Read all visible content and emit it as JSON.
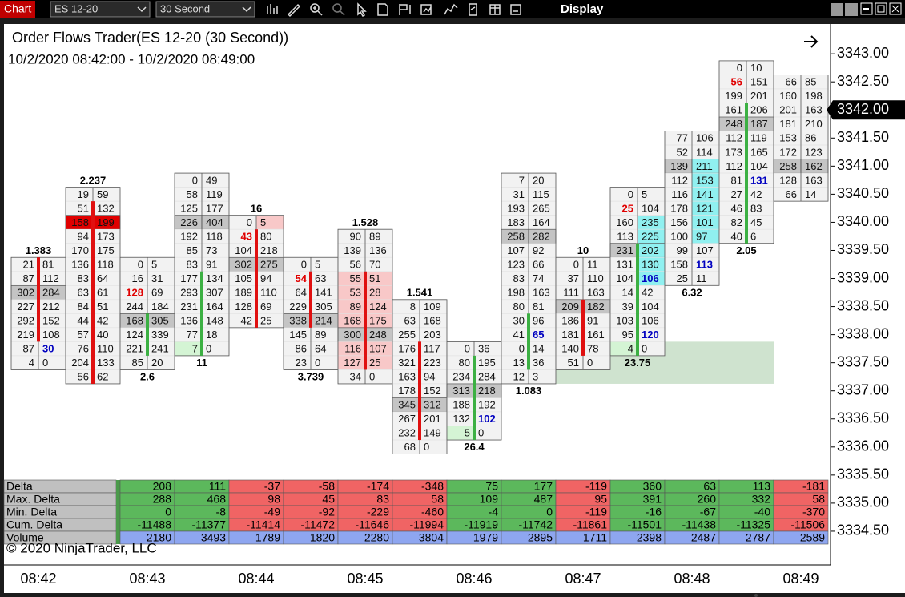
{
  "toolbar": {
    "tab": "Chart",
    "instrument": "ES 12-20",
    "interval": "30 Second",
    "menu": "Display"
  },
  "chart_data": {
    "type": "footprint",
    "title": "Order Flows Trader(ES 12-20 (30 Second))",
    "subtitle": "10/2/2020 08:42:00 - 10/2/2020 08:49:00",
    "copyright": "© 2020 NinjaTrader, LLC",
    "tick_size": 0.25,
    "ylim": [
      3333.9,
      3343.53
    ],
    "yticks": [
      {
        "value": 3343,
        "label": "3343.00"
      },
      {
        "value": 3342.5,
        "label": "3342.50"
      },
      {
        "value": 3341.5,
        "label": "3341.50"
      },
      {
        "value": 3341,
        "label": "3341.00"
      },
      {
        "value": 3340.5,
        "label": "3340.50"
      },
      {
        "value": 3340,
        "label": "3340.00"
      },
      {
        "value": 3339.5,
        "label": "3339.50"
      },
      {
        "value": 3339,
        "label": "3339.00"
      },
      {
        "value": 3338.5,
        "label": "3338.50"
      },
      {
        "value": 3338,
        "label": "3338.00"
      },
      {
        "value": 3337.5,
        "label": "3337.50"
      },
      {
        "value": 3337,
        "label": "3337.00"
      },
      {
        "value": 3336.5,
        "label": "3336.50"
      },
      {
        "value": 3336,
        "label": "3336.00"
      },
      {
        "value": 3335.5,
        "label": "3335.50"
      },
      {
        "value": 3335,
        "label": "3335.00"
      },
      {
        "value": 3334.5,
        "label": "3334.50"
      }
    ],
    "current_price": {
      "value": 3342,
      "label": "3342.00"
    },
    "time_labels": [
      "08:42",
      "08:43",
      "08:44",
      "08:45",
      "08:46",
      "08:47",
      "08:48",
      "08:49"
    ],
    "up_color": "#3cb043",
    "down_color": "#e01010",
    "cell_color": "#f2f2f2",
    "poc_color": "#c4c4c4",
    "zone": {
      "low": 3337.25,
      "high": 3337.75,
      "color": "#cfe3cf"
    },
    "bars": [
      {
        "top": 3339.25,
        "bid": [
          21,
          87,
          302,
          227,
          292,
          219,
          87,
          4
        ],
        "ask": [
          81,
          112,
          284,
          212,
          152,
          108,
          30,
          0
        ],
        "label": 1.383,
        "label_at": "top",
        "open": 3339.25,
        "close": 3338.0,
        "ask_text_colors": [
          null,
          null,
          null,
          null,
          null,
          null,
          "#0000c0",
          null
        ]
      },
      {
        "top": 3340.5,
        "bid": [
          19,
          51,
          158,
          94,
          170,
          136,
          83,
          63,
          84,
          44,
          57,
          76,
          204,
          56
        ],
        "ask": [
          59,
          132,
          199,
          173,
          175,
          118,
          64,
          61,
          51,
          42,
          40,
          110,
          133,
          62
        ],
        "label": 2.237,
        "label_at": "top",
        "open": 3340.25,
        "close": 3337.25,
        "poc_color": "#e00000"
      },
      {
        "top": 3339.25,
        "bid": [
          0,
          16,
          128,
          244,
          168,
          124,
          221,
          85
        ],
        "ask": [
          5,
          31,
          69,
          184,
          305,
          339,
          241,
          20
        ],
        "label": 2.6,
        "label_at": "bottom",
        "open": 3337.75,
        "close": 3338.25,
        "bid_text_colors": [
          null,
          null,
          "#e00000",
          null,
          null,
          null,
          null,
          null
        ]
      },
      {
        "top": 3340.75,
        "bid": [
          0,
          58,
          125,
          226,
          192,
          85,
          83,
          177,
          293,
          231,
          136,
          77,
          7
        ],
        "ask": [
          49,
          119,
          177,
          404,
          118,
          73,
          91,
          134,
          307,
          164,
          148,
          18,
          0
        ],
        "label": 11,
        "label_at": "bottom",
        "open": 3337.75,
        "close": 3339.0,
        "bid_fills": [
          null,
          null,
          null,
          null,
          null,
          null,
          null,
          null,
          null,
          null,
          null,
          null,
          "#d4f4d4"
        ]
      },
      {
        "top": 3340.0,
        "bid": [
          0,
          43,
          104,
          302,
          105,
          189,
          128,
          42
        ],
        "ask": [
          5,
          80,
          218,
          275,
          94,
          110,
          69,
          25
        ],
        "label": 16,
        "label_at": "top",
        "open": 3339.75,
        "close": 3338.25,
        "bid_text_colors": [
          null,
          "#e00000",
          null,
          null,
          null,
          null,
          null,
          null
        ],
        "ask_fills": [
          "#f8c8c8",
          null,
          null,
          null,
          null,
          null,
          null,
          null
        ]
      },
      {
        "top": 3339.25,
        "bid": [
          0,
          54,
          64,
          229,
          338,
          145,
          86,
          23
        ],
        "ask": [
          5,
          63,
          141,
          305,
          214,
          89,
          64,
          0
        ],
        "label": 3.739,
        "label_at": "bottom",
        "open": 3339.0,
        "close": 3338.25,
        "bid_text_colors": [
          null,
          "#e00000",
          null,
          null,
          null,
          null,
          null,
          null
        ]
      },
      {
        "top": 3339.75,
        "bid": [
          90,
          139,
          56,
          55,
          53,
          89,
          168,
          300,
          116,
          127,
          34
        ],
        "ask": [
          89,
          136,
          70,
          51,
          28,
          124,
          175,
          248,
          107,
          25,
          0
        ],
        "label": 1.528,
        "label_at": "top",
        "open": 3339.0,
        "close": 3337.5,
        "bid_fills": [
          null,
          null,
          null,
          "#f8c8c8",
          "#f8c8c8",
          "#f8c8c8",
          "#f8c8c8",
          null,
          "#f8c8c8",
          "#f8c8c8",
          null
        ],
        "ask_fills": [
          null,
          null,
          null,
          "#f8c8c8",
          "#f8c8c8",
          "#f8c8c8",
          "#f8c8c8",
          null,
          "#f8c8c8",
          "#f8c8c8",
          null
        ]
      },
      {
        "top": 3338.5,
        "bid": [
          8,
          63,
          255,
          176,
          321,
          163,
          178,
          345,
          267,
          232,
          68
        ],
        "ask": [
          109,
          168,
          203,
          117,
          223,
          94,
          152,
          312,
          201,
          149,
          0
        ],
        "label": 1.541,
        "label_at": "top",
        "open": 3337.75,
        "close": 3336.25
      },
      {
        "top": 3337.75,
        "bid": [
          0,
          80,
          234,
          313,
          188,
          132,
          5
        ],
        "ask": [
          36,
          195,
          284,
          218,
          192,
          102,
          0
        ],
        "label": 26.4,
        "label_at": "bottom",
        "open": 3336.25,
        "close": 3337.5,
        "ask_text_colors": [
          null,
          null,
          null,
          null,
          null,
          "#0000c0",
          null
        ],
        "bid_fills": [
          null,
          null,
          null,
          null,
          null,
          null,
          "#d4f4d4"
        ]
      },
      {
        "top": 3340.75,
        "bid": [
          7,
          31,
          193,
          183,
          258,
          107,
          123,
          83,
          198,
          80,
          30,
          41,
          0,
          13,
          12
        ],
        "ask": [
          20,
          115,
          265,
          164,
          282,
          92,
          66,
          74,
          163,
          81,
          96,
          65,
          14,
          36,
          3
        ],
        "label": 1.083,
        "label_at": "bottom",
        "open": 3337.5,
        "close": 3338.25,
        "ask_text_colors": [
          null,
          null,
          null,
          null,
          null,
          null,
          null,
          null,
          null,
          null,
          null,
          "#0000c0",
          null,
          null,
          null
        ]
      },
      {
        "top": 3339.25,
        "bid": [
          0,
          37,
          111,
          209,
          186,
          181,
          140,
          51
        ],
        "ask": [
          11,
          110,
          163,
          182,
          91,
          161,
          78,
          0
        ],
        "label": 10,
        "label_at": "top",
        "open": 3338.5,
        "close": 3337.75
      },
      {
        "top": 3340.5,
        "bid": [
          0,
          25,
          160,
          113,
          231,
          131,
          104,
          14,
          39,
          103,
          95,
          4
        ],
        "ask": [
          5,
          104,
          235,
          225,
          202,
          130,
          106,
          42,
          104,
          106,
          120,
          0
        ],
        "label": 23.75,
        "label_at": "bottom",
        "open": 3337.75,
        "close": 3339.5,
        "bid_text_colors": [
          null,
          "#e00000",
          null,
          null,
          null,
          null,
          null,
          null,
          null,
          null,
          null,
          null
        ],
        "ask_text_colors": [
          null,
          null,
          null,
          null,
          null,
          null,
          "#0000c0",
          null,
          null,
          null,
          "#0000c0",
          null
        ],
        "ask_fills": [
          null,
          null,
          "#90f0f0",
          "#90f0f0",
          "#90f0f0",
          "#90f0f0",
          "#90f0f0",
          null,
          null,
          null,
          null,
          null
        ],
        "bid_fills": [
          null,
          null,
          null,
          null,
          null,
          null,
          null,
          null,
          null,
          null,
          null,
          "#d4f4d4"
        ]
      },
      {
        "top": 3341.5,
        "bid": [
          77,
          52,
          139,
          112,
          116,
          178,
          156,
          100,
          99,
          158,
          25
        ],
        "ask": [
          106,
          114,
          211,
          153,
          141,
          121,
          101,
          97,
          107,
          113,
          11
        ],
        "label": 6.32,
        "label_at": "bottom",
        "ask_text_colors": [
          null,
          null,
          null,
          null,
          null,
          null,
          null,
          null,
          null,
          "#0000c0",
          null
        ],
        "ask_fills": [
          null,
          null,
          "#90f0f0",
          "#90f0f0",
          "#90f0f0",
          "#90f0f0",
          "#90f0f0",
          "#90f0f0",
          null,
          null,
          null
        ]
      },
      {
        "top": 3342.75,
        "bid": [
          0,
          56,
          199,
          161,
          248,
          112,
          173,
          112,
          81,
          27,
          46,
          82,
          40
        ],
        "ask": [
          10,
          151,
          201,
          206,
          187,
          119,
          165,
          104,
          131,
          42,
          83,
          45,
          6
        ],
        "label": 2.05,
        "label_at": "bottom",
        "open": 3339.75,
        "close": 3342.0,
        "bid_text_colors": [
          null,
          "#e00000",
          null,
          null,
          null,
          null,
          null,
          null,
          null,
          null,
          null,
          null,
          null
        ],
        "ask_text_colors": [
          null,
          null,
          null,
          null,
          null,
          null,
          null,
          null,
          "#0000c0",
          null,
          null,
          null,
          null
        ]
      },
      {
        "top": 3342.5,
        "bid": [
          66,
          160,
          201,
          181,
          153,
          172,
          258,
          128,
          66
        ],
        "ask": [
          85,
          198,
          163,
          210,
          86,
          123,
          162,
          163,
          14
        ]
      }
    ],
    "table": {
      "positive_color": "#5cb85c",
      "negative_color": "#f06464",
      "label_color": "#c0c0c0",
      "rows": [
        {
          "name": "Delta",
          "values": [
            208,
            111,
            -37,
            -58,
            -174,
            -348,
            75,
            177,
            -119,
            360,
            63,
            113,
            -181
          ]
        },
        {
          "name": "Max. Delta",
          "values": [
            288,
            468,
            98,
            45,
            83,
            58,
            109,
            487,
            95,
            391,
            260,
            332,
            58
          ]
        },
        {
          "name": "Min. Delta",
          "values": [
            0,
            -8,
            -49,
            -92,
            -229,
            -460,
            -4,
            0,
            -119,
            -16,
            -67,
            -40,
            -370
          ]
        },
        {
          "name": "Cum. Delta",
          "values": [
            -11488,
            -11377,
            -11414,
            -11472,
            -11646,
            -11994,
            -11919,
            -11742,
            -11861,
            -11501,
            -11438,
            -11325,
            -11506
          ]
        },
        {
          "name": "Volume",
          "color": "#8ea6f0",
          "values": [
            2180,
            3493,
            1789,
            1820,
            2280,
            3804,
            1979,
            2895,
            1711,
            2398,
            2487,
            2787,
            2589
          ]
        }
      ]
    }
  }
}
